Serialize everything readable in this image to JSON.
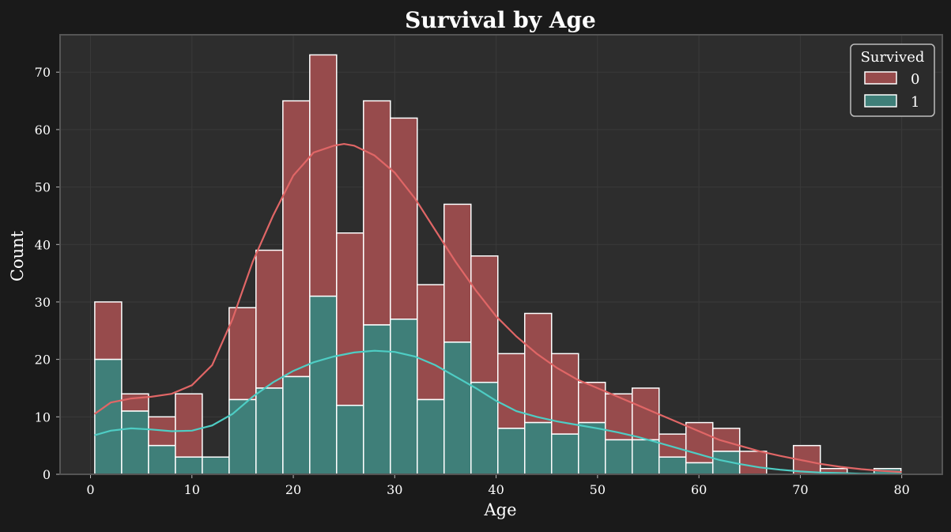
{
  "chart_data": {
    "type": "histogram",
    "title": "Survival by Age",
    "xlabel": "Age",
    "ylabel": "Count",
    "xlim": [
      -3,
      84
    ],
    "ylim": [
      0,
      76.5
    ],
    "xticks": [
      0,
      10,
      20,
      30,
      40,
      50,
      60,
      70,
      80
    ],
    "yticks": [
      0,
      10,
      20,
      30,
      40,
      50,
      60,
      70
    ],
    "grid": true,
    "stacked": true,
    "bin_start": 0.42,
    "bin_width": 2.65,
    "legend": {
      "title": "Survived",
      "placement": "top-right"
    },
    "series": [
      {
        "name": "0",
        "color": "#e06666",
        "fill": "#974b4c",
        "stack_totals": [
          30,
          14,
          10,
          14,
          3,
          29,
          39,
          65,
          73,
          42,
          65,
          62,
          33,
          47,
          38,
          21,
          28,
          21,
          16,
          14,
          15,
          7,
          9,
          8,
          4,
          0,
          5,
          1,
          0,
          1
        ],
        "kde_x": [
          0.4,
          2,
          4,
          6,
          8,
          10,
          12,
          14,
          16,
          18,
          20,
          22,
          24,
          25,
          26,
          28,
          30,
          32,
          34,
          36,
          38,
          40,
          42,
          44,
          46,
          48,
          50,
          52,
          54,
          56,
          58,
          60,
          62,
          64,
          66,
          68,
          70,
          72,
          74,
          76,
          78,
          80
        ],
        "kde_y": [
          10.5,
          12.5,
          13.2,
          13.5,
          14,
          15.5,
          19,
          27,
          37,
          45,
          52,
          56,
          57.2,
          57.5,
          57.2,
          55.5,
          52.5,
          48,
          42.5,
          37,
          32,
          27.5,
          24,
          21,
          18.5,
          16.5,
          15,
          13.5,
          12,
          10.5,
          9,
          7.5,
          6,
          5,
          4,
          3.2,
          2.5,
          1.8,
          1.3,
          0.9,
          0.6,
          0.4
        ]
      },
      {
        "name": "1",
        "color": "#4ecdc4",
        "fill": "#3f7f79",
        "values": [
          20,
          11,
          5,
          3,
          3,
          13,
          15,
          17,
          31,
          12,
          26,
          27,
          13,
          23,
          16,
          8,
          9,
          7,
          9,
          6,
          6,
          3,
          2,
          4,
          0,
          0,
          0,
          0,
          0,
          1
        ],
        "kde_x": [
          0.4,
          2,
          4,
          6,
          8,
          10,
          12,
          14,
          16,
          18,
          20,
          22,
          24,
          26,
          28,
          30,
          32,
          34,
          36,
          38,
          40,
          42,
          44,
          46,
          48,
          50,
          52,
          54,
          56,
          58,
          60,
          62,
          64,
          66,
          68,
          70,
          72,
          74,
          76,
          78,
          80
        ],
        "kde_y": [
          6.8,
          7.6,
          8,
          7.8,
          7.5,
          7.6,
          8.5,
          10.5,
          13.5,
          16,
          18,
          19.5,
          20.5,
          21.2,
          21.5,
          21.3,
          20.5,
          19,
          17,
          15,
          12.8,
          11,
          10,
          9.2,
          8.6,
          8,
          7.3,
          6.5,
          5.5,
          4.5,
          3.5,
          2.5,
          1.8,
          1.2,
          0.8,
          0.5,
          0.3,
          0.2,
          0.1,
          0.1,
          0.1
        ]
      }
    ]
  }
}
